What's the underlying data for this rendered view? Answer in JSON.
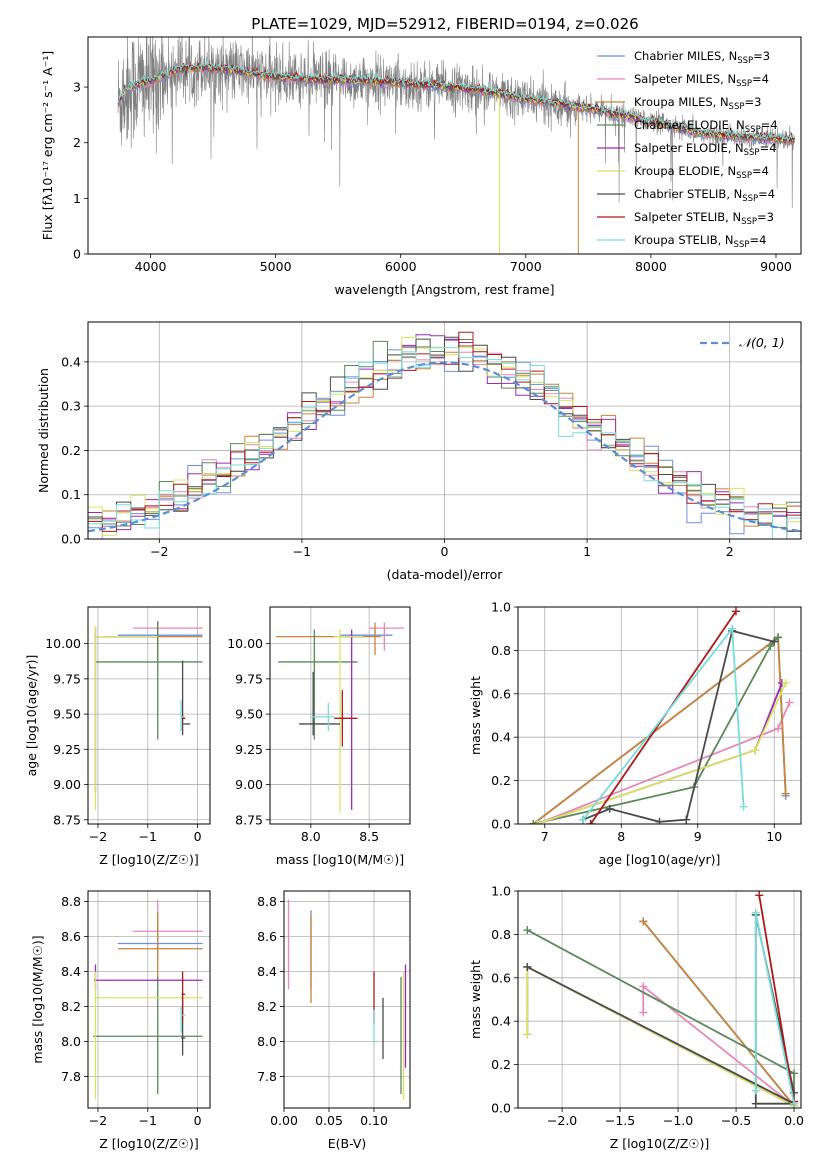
{
  "figure": {
    "title": "PLATE=1029, MJD=52912, FIBERID=0194, z=0.026"
  },
  "colors": {
    "Chabrier MILES": "#6b8fe0",
    "Salpeter MILES": "#e887b8",
    "Kroupa MILES": "#c8843a",
    "Chabrier ELODIE": "#5a8a5a",
    "Salpeter ELODIE": "#9a2bb8",
    "Kroupa ELODIE": "#d8e460",
    "Chabrier STELIB": "#4a4a4a",
    "Salpeter STELIB": "#b01818",
    "Kroupa STELIB": "#78dcd8",
    "data": "#808080",
    "gaussian": "#5b8fd8"
  },
  "chart_data": [
    {
      "id": "spectrum",
      "type": "line",
      "xlabel": "wavelength [Angstrom, rest frame]",
      "ylabel": "Flux [fλ10⁻¹⁷ erg cm⁻² s⁻¹ A⁻¹]",
      "xlim": [
        3500,
        9200
      ],
      "ylim": [
        0,
        3.9
      ],
      "xticks": [
        4000,
        5000,
        6000,
        7000,
        8000,
        9000
      ],
      "yticks": [
        0,
        1,
        2,
        3
      ],
      "legend_position": "top-right",
      "legend": [
        {
          "name": "Chabrier MILES",
          "label": "Chabrier MILES, N",
          "n": "=3"
        },
        {
          "name": "Salpeter MILES",
          "label": "Salpeter MILES, N",
          "n": "=4"
        },
        {
          "name": "Kroupa MILES",
          "label": "Kroupa MILES, N",
          "n": "=3"
        },
        {
          "name": "Chabrier ELODIE",
          "label": "Chabrier ELODIE, N",
          "n": "=4"
        },
        {
          "name": "Salpeter ELODIE",
          "label": "Salpeter ELODIE, N",
          "n": "=4"
        },
        {
          "name": "Kroupa ELODIE",
          "label": "Kroupa ELODIE, N",
          "n": "=4"
        },
        {
          "name": "Chabrier STELIB",
          "label": "Chabrier STELIB, N",
          "n": "=4"
        },
        {
          "name": "Salpeter STELIB",
          "label": "Salpeter STELIB, N",
          "n": "=3"
        },
        {
          "name": "Kroupa STELIB",
          "label": "Kroupa STELIB, N",
          "n": "=4"
        }
      ],
      "legend_subscript": "SSP",
      "continuum": {
        "x": [
          3740,
          3800,
          3900,
          4000,
          4100,
          4200,
          4400,
          4600,
          4800,
          5000,
          5200,
          5400,
          5600,
          5800,
          6000,
          6200,
          6400,
          6600,
          6800,
          7000,
          7200,
          7400,
          7600,
          7800,
          8000,
          8200,
          8400,
          8600,
          8800,
          9000,
          9150
        ],
        "y": [
          2.7,
          2.95,
          3.05,
          3.1,
          3.2,
          3.3,
          3.35,
          3.32,
          3.25,
          3.18,
          3.15,
          3.13,
          3.12,
          3.1,
          3.08,
          3.03,
          3.0,
          2.95,
          2.88,
          2.78,
          2.72,
          2.65,
          2.58,
          2.48,
          2.38,
          2.27,
          2.17,
          2.12,
          2.1,
          2.07,
          2.05
        ]
      }
    },
    {
      "id": "residuals",
      "type": "line",
      "xlabel": "(data-model)/error",
      "ylabel": "Normed distribution",
      "xlim": [
        -2.5,
        2.5
      ],
      "ylim": [
        0,
        0.49
      ],
      "xticks": [
        -2,
        -1,
        0,
        1,
        2
      ],
      "yticks": [
        0.0,
        0.1,
        0.2,
        0.3,
        0.4
      ],
      "grid": true,
      "legend_position": "top-right",
      "gaussian_label": "𝒩(0, 1)",
      "bin_width": 0.1
    },
    {
      "id": "age_vs_Z",
      "type": "scatter",
      "xlabel": "Z [log10(Z/Z☉)]",
      "ylabel": "age  [log10(age/yr)]",
      "xlim": [
        -2.2,
        0.25
      ],
      "ylim": [
        8.72,
        10.26
      ],
      "xticks": [
        -2,
        -1,
        0
      ],
      "yticks": [
        8.75,
        9.0,
        9.25,
        9.5,
        9.75,
        10.0
      ],
      "grid": true
    },
    {
      "id": "age_vs_mass",
      "type": "scatter",
      "xlabel": "mass [log10(M/M☉)]",
      "xlim": [
        7.65,
        8.85
      ],
      "ylim": [
        8.72,
        10.26
      ],
      "xticks": [
        8.0,
        8.5
      ],
      "yticks": [
        8.75,
        9.0,
        9.25,
        9.5,
        9.75,
        10.0
      ],
      "grid": true
    },
    {
      "id": "weight_vs_age",
      "type": "line",
      "xlabel": "age  [log10(age/yr)]",
      "ylabel": "mass weight",
      "xlim": [
        6.65,
        10.35
      ],
      "ylim": [
        0,
        1.0
      ],
      "xticks": [
        7,
        8,
        9,
        10
      ],
      "yticks": [
        0.0,
        0.2,
        0.4,
        0.6,
        0.8,
        1.0
      ],
      "grid": true,
      "series": [
        {
          "name": "Chabrier MILES",
          "x": [
            6.85,
            10.05,
            10.15
          ],
          "y": [
            0.0,
            0.86,
            0.13
          ]
        },
        {
          "name": "Salpeter MILES",
          "x": [
            6.9,
            10.05,
            10.2
          ],
          "y": [
            0.0,
            0.44,
            0.56
          ]
        },
        {
          "name": "Kroupa MILES",
          "x": [
            6.85,
            10.05,
            10.15
          ],
          "y": [
            0.0,
            0.86,
            0.14
          ]
        },
        {
          "name": "Chabrier ELODIE",
          "x": [
            6.85,
            8.95,
            9.95,
            10.05
          ],
          "y": [
            0.0,
            0.17,
            0.82,
            0.86
          ]
        },
        {
          "name": "Salpeter ELODIE",
          "x": [
            6.9,
            9.75,
            10.1
          ],
          "y": [
            0.0,
            0.34,
            0.65
          ]
        },
        {
          "name": "Kroupa ELODIE",
          "x": [
            6.9,
            9.75,
            10.15
          ],
          "y": [
            0.0,
            0.34,
            0.65
          ]
        },
        {
          "name": "Chabrier STELIB",
          "x": [
            7.5,
            7.85,
            8.5,
            8.85,
            9.45,
            10.0
          ],
          "y": [
            0.02,
            0.07,
            0.01,
            0.02,
            0.89,
            0.84
          ]
        },
        {
          "name": "Salpeter STELIB",
          "x": [
            7.6,
            9.5
          ],
          "y": [
            0.0,
            0.98
          ]
        },
        {
          "name": "Kroupa STELIB",
          "x": [
            7.5,
            9.45,
            9.6
          ],
          "y": [
            0.02,
            0.9,
            0.08
          ]
        }
      ]
    },
    {
      "id": "mass_vs_Z",
      "type": "scatter",
      "xlabel": "Z [log10(Z/Z☉)]",
      "ylabel": "mass [log10(M/M☉)]",
      "xlim": [
        -2.2,
        0.25
      ],
      "ylim": [
        7.62,
        8.86
      ],
      "xticks": [
        -2,
        -1,
        0
      ],
      "yticks": [
        7.8,
        8.0,
        8.2,
        8.4,
        8.6,
        8.8
      ],
      "grid": true
    },
    {
      "id": "mass_vs_EBV",
      "type": "scatter",
      "xlabel": "E(B-V)",
      "xlim": [
        0.0,
        0.14
      ],
      "ylim": [
        7.62,
        8.86
      ],
      "xticks": [
        0.0,
        0.05,
        0.1
      ],
      "yticks": [
        7.8,
        8.0,
        8.2,
        8.4,
        8.6,
        8.8
      ],
      "grid": true
    },
    {
      "id": "weight_vs_Z",
      "type": "line",
      "xlabel": "Z [log10(Z/Z☉)]",
      "ylabel": "mass weight",
      "xlim": [
        -2.38,
        0.06
      ],
      "ylim": [
        0,
        1.0
      ],
      "xticks": [
        -2.0,
        -1.5,
        -1.0,
        -0.5,
        0.0
      ],
      "yticks": [
        0.0,
        0.2,
        0.4,
        0.6,
        0.8,
        1.0
      ],
      "grid": true,
      "series": [
        {
          "name": "Chabrier MILES",
          "x": [
            -1.3,
            0.0
          ],
          "y": [
            0.86,
            0.01
          ]
        },
        {
          "name": "Salpeter MILES",
          "x": [
            -1.3,
            -1.3,
            0.0
          ],
          "y": [
            0.44,
            0.56,
            0.01
          ]
        },
        {
          "name": "Kroupa MILES",
          "x": [
            -1.3,
            0.0
          ],
          "y": [
            0.86,
            0.01
          ]
        },
        {
          "name": "Chabrier ELODIE",
          "x": [
            -2.3,
            0.0,
            0.0
          ],
          "y": [
            0.82,
            0.16,
            0.02
          ]
        },
        {
          "name": "Salpeter ELODIE",
          "x": [
            -2.3,
            -2.3,
            0.0
          ],
          "y": [
            0.34,
            0.65,
            0.01
          ]
        },
        {
          "name": "Kroupa ELODIE",
          "x": [
            -2.3,
            -2.3,
            0.0
          ],
          "y": [
            0.34,
            0.65,
            0.01
          ]
        },
        {
          "name": "Chabrier STELIB",
          "x": [
            -2.3,
            0.0,
            -0.33,
            -0.33,
            0.0
          ],
          "y": [
            0.65,
            0.02,
            0.02,
            0.89,
            0.07
          ]
        },
        {
          "name": "Salpeter STELIB",
          "x": [
            -0.3,
            0.0
          ],
          "y": [
            0.98,
            0.03
          ]
        },
        {
          "name": "Kroupa STELIB",
          "x": [
            -0.33,
            -0.33,
            0.0
          ],
          "y": [
            0.08,
            0.9,
            0.02
          ]
        }
      ]
    }
  ],
  "errorbars": {
    "age_vs_Z": [
      {
        "name": "Chabrier MILES",
        "x": -0.8,
        "y": 10.06,
        "xlo": -1.6,
        "xhi": 0.1,
        "ylo": 10.06,
        "yhi": 10.1
      },
      {
        "name": "Salpeter MILES",
        "x": -0.8,
        "y": 10.11,
        "xlo": -1.3,
        "xhi": 0.1,
        "ylo": 9.88,
        "yhi": 10.16
      },
      {
        "name": "Kroupa MILES",
        "x": -0.8,
        "y": 10.05,
        "xlo": -2.0,
        "xhi": 0.1,
        "ylo": 9.92,
        "yhi": 10.15
      },
      {
        "name": "Chabrier ELODIE",
        "x": -0.8,
        "y": 9.87,
        "xlo": -2.05,
        "xhi": 0.1,
        "ylo": 9.32,
        "yhi": 10.16
      },
      {
        "name": "Salpeter ELODIE",
        "x": -2.05,
        "y": 10.05,
        "xlo": -2.08,
        "xhi": -0.8,
        "ylo": 8.95,
        "yhi": 10.12
      },
      {
        "name": "Kroupa ELODIE",
        "x": -2.05,
        "y": 10.05,
        "xlo": -2.08,
        "xhi": -0.8,
        "ylo": 8.82,
        "yhi": 10.12
      },
      {
        "name": "Chabrier STELIB",
        "x": -0.3,
        "y": 9.43,
        "xlo": -0.3,
        "xhi": -0.15,
        "ylo": 9.35,
        "yhi": 9.88
      },
      {
        "name": "Salpeter STELIB",
        "x": -0.3,
        "y": 9.47,
        "xlo": -0.32,
        "xhi": -0.25,
        "ylo": 9.45,
        "yhi": 9.49
      },
      {
        "name": "Kroupa STELIB",
        "x": -0.33,
        "y": 9.48,
        "xlo": -0.33,
        "xhi": -0.25,
        "ylo": 9.38,
        "yhi": 9.6
      }
    ],
    "age_vs_mass": [
      {
        "name": "Chabrier MILES",
        "x": 8.55,
        "y": 10.06,
        "xlo": 8.25,
        "xhi": 8.7,
        "ylo": 10.06,
        "yhi": 10.1
      },
      {
        "name": "Salpeter MILES",
        "x": 8.63,
        "y": 10.11,
        "xlo": 8.5,
        "xhi": 8.8,
        "ylo": 9.95,
        "yhi": 10.15
      },
      {
        "name": "Kroupa MILES",
        "x": 8.55,
        "y": 10.05,
        "xlo": 7.7,
        "xhi": 8.6,
        "ylo": 9.92,
        "yhi": 10.15
      },
      {
        "name": "Chabrier ELODIE",
        "x": 8.03,
        "y": 9.87,
        "xlo": 7.72,
        "xhi": 8.4,
        "ylo": 9.32,
        "yhi": 10.1
      },
      {
        "name": "Salpeter ELODIE",
        "x": 8.35,
        "y": 10.05,
        "xlo": 8.3,
        "xhi": 8.45,
        "ylo": 8.82,
        "yhi": 10.1
      },
      {
        "name": "Kroupa ELODIE",
        "x": 8.25,
        "y": 10.05,
        "xlo": 8.2,
        "xhi": 8.45,
        "ylo": 8.8,
        "yhi": 10.1
      },
      {
        "name": "Chabrier STELIB",
        "x": 8.02,
        "y": 9.43,
        "xlo": 7.9,
        "xhi": 8.25,
        "ylo": 9.35,
        "yhi": 9.8
      },
      {
        "name": "Salpeter STELIB",
        "x": 8.27,
        "y": 9.47,
        "xlo": 8.2,
        "xhi": 8.4,
        "ylo": 9.27,
        "yhi": 9.67
      },
      {
        "name": "Kroupa STELIB",
        "x": 8.15,
        "y": 9.48,
        "xlo": 8.0,
        "xhi": 8.2,
        "ylo": 9.38,
        "yhi": 9.58
      }
    ],
    "mass_vs_Z": [
      {
        "name": "Chabrier MILES",
        "x": -0.8,
        "y": 8.56,
        "xlo": -1.6,
        "xhi": 0.1,
        "ylo": 8.56,
        "yhi": 8.56
      },
      {
        "name": "Salpeter MILES",
        "x": -0.8,
        "y": 8.63,
        "xlo": -1.3,
        "xhi": 0.1,
        "ylo": 8.46,
        "yhi": 8.81
      },
      {
        "name": "Kroupa MILES",
        "x": -0.8,
        "y": 8.53,
        "xlo": -1.6,
        "xhi": 0.1,
        "ylo": 8.35,
        "yhi": 8.74
      },
      {
        "name": "Chabrier ELODIE",
        "x": -0.8,
        "y": 8.03,
        "xlo": -2.1,
        "xhi": 0.1,
        "ylo": 7.7,
        "yhi": 8.37
      },
      {
        "name": "Salpeter ELODIE",
        "x": -2.05,
        "y": 8.35,
        "xlo": -2.08,
        "xhi": 0.1,
        "ylo": 8.3,
        "yhi": 8.44
      },
      {
        "name": "Kroupa ELODIE",
        "x": -2.05,
        "y": 8.25,
        "xlo": -2.08,
        "xhi": 0.1,
        "ylo": 7.67,
        "yhi": 8.4
      },
      {
        "name": "Chabrier STELIB",
        "x": -0.3,
        "y": 8.02,
        "xlo": -0.33,
        "xhi": -0.25,
        "ylo": 7.92,
        "yhi": 8.25
      },
      {
        "name": "Salpeter STELIB",
        "x": -0.3,
        "y": 8.27,
        "xlo": -0.32,
        "xhi": -0.25,
        "ylo": 8.12,
        "yhi": 8.4
      },
      {
        "name": "Kroupa STELIB",
        "x": -0.33,
        "y": 8.15,
        "xlo": -0.33,
        "xhi": -0.25,
        "ylo": 8.05,
        "yhi": 8.2
      }
    ],
    "mass_vs_EBV": [
      {
        "name": "Chabrier MILES",
        "x": 0.03,
        "y": 8.56,
        "xlo": 0.03,
        "xhi": 0.03,
        "ylo": 8.3,
        "yhi": 8.75
      },
      {
        "name": "Salpeter MILES",
        "x": 0.005,
        "y": 8.63,
        "xlo": 0.005,
        "xhi": 0.005,
        "ylo": 8.3,
        "yhi": 8.81
      },
      {
        "name": "Kroupa MILES",
        "x": 0.03,
        "y": 8.53,
        "xlo": 0.03,
        "xhi": 0.03,
        "ylo": 8.22,
        "yhi": 8.72
      },
      {
        "name": "Chabrier ELODIE",
        "x": 0.13,
        "y": 8.03,
        "xlo": 0.13,
        "xhi": 0.13,
        "ylo": 7.7,
        "yhi": 8.37
      },
      {
        "name": "Salpeter ELODIE",
        "x": 0.135,
        "y": 8.35,
        "xlo": 0.135,
        "xhi": 0.135,
        "ylo": 7.85,
        "yhi": 8.44
      },
      {
        "name": "Kroupa ELODIE",
        "x": 0.133,
        "y": 8.25,
        "xlo": 0.133,
        "xhi": 0.133,
        "ylo": 7.67,
        "yhi": 8.4
      },
      {
        "name": "Chabrier STELIB",
        "x": 0.11,
        "y": 8.02,
        "xlo": 0.11,
        "xhi": 0.11,
        "ylo": 7.9,
        "yhi": 8.25
      },
      {
        "name": "Salpeter STELIB",
        "x": 0.1,
        "y": 8.27,
        "xlo": 0.1,
        "xhi": 0.1,
        "ylo": 8.1,
        "yhi": 8.4
      },
      {
        "name": "Kroupa STELIB",
        "x": 0.1,
        "y": 8.15,
        "xlo": 0.1,
        "xhi": 0.1,
        "ylo": 7.98,
        "yhi": 8.18
      }
    ]
  }
}
